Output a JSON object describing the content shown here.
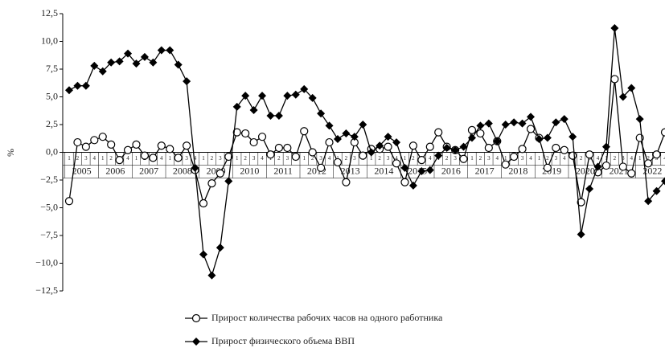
{
  "chart_data": {
    "type": "line",
    "y_label": "%",
    "categories": [
      "1",
      "2",
      "3",
      "4",
      "1",
      "2",
      "3",
      "4",
      "1",
      "2",
      "3",
      "4",
      "1",
      "2",
      "3",
      "4",
      "1",
      "2",
      "3",
      "4",
      "1",
      "2",
      "3",
      "4",
      "1",
      "2",
      "3",
      "4",
      "1",
      "2",
      "3",
      "4",
      "1",
      "2",
      "3",
      "4",
      "1",
      "2",
      "3",
      "4",
      "1",
      "2",
      "3",
      "4",
      "1",
      "2",
      "3",
      "4",
      "1",
      "2",
      "3",
      "4",
      "1",
      "2",
      "3",
      "4",
      "1",
      "2",
      "3",
      "4",
      "1",
      "2",
      "3",
      "4",
      "1",
      "2",
      "3",
      "4",
      "1",
      "2",
      "3",
      "4"
    ],
    "years": [
      "2005",
      "2006",
      "2007",
      "2008",
      "2009",
      "2010",
      "2011",
      "2012",
      "2013",
      "2014",
      "2015",
      "2016",
      "2017",
      "2018",
      "2019",
      "2020",
      "2021",
      "2022"
    ],
    "series": [
      {
        "name": "Прирост количества рабочих часов на одного работника",
        "color": "#000000",
        "marker": "circle",
        "values": [
          -4.4,
          0.9,
          0.5,
          1.1,
          1.4,
          0.7,
          -0.7,
          0.2,
          0.7,
          -0.3,
          -0.5,
          0.6,
          0.3,
          -0.5,
          0.6,
          -1.6,
          -4.6,
          -2.8,
          -1.9,
          -0.4,
          1.8,
          1.7,
          0.9,
          1.4,
          -0.2,
          0.4,
          0.4,
          -0.4,
          1.9,
          0.0,
          -1.4,
          0.9,
          -0.9,
          -2.7,
          0.9,
          -0.3,
          0.3,
          0.3,
          0.5,
          -1.0,
          -2.7,
          0.6,
          -0.7,
          0.5,
          1.8,
          0.5,
          0.2,
          -0.6,
          2.0,
          1.7,
          0.4,
          1.0,
          -1.1,
          -0.4,
          0.3,
          2.1,
          1.3,
          -1.4,
          0.4,
          0.2,
          -0.3,
          -4.5,
          -0.2,
          -1.8,
          -1.2,
          6.6,
          -1.3,
          -1.9,
          1.3,
          -1.0,
          -0.2,
          1.8
        ]
      },
      {
        "name": "Прирост физического объема ВВП",
        "color": "#000000",
        "marker": "diamond",
        "values": [
          5.6,
          6.0,
          6.0,
          7.8,
          7.3,
          8.1,
          8.2,
          8.9,
          8.0,
          8.6,
          8.1,
          9.2,
          9.2,
          7.9,
          6.4,
          -1.4,
          -9.2,
          -11.1,
          -8.6,
          -2.6,
          4.1,
          5.1,
          3.8,
          5.1,
          3.3,
          3.3,
          5.1,
          5.2,
          5.7,
          4.9,
          3.5,
          2.4,
          1.2,
          1.7,
          1.4,
          2.5,
          0.0,
          0.6,
          1.4,
          0.9,
          -1.4,
          -3.0,
          -1.7,
          -1.6,
          -0.3,
          0.4,
          0.2,
          0.5,
          1.3,
          2.4,
          2.6,
          1.0,
          2.5,
          2.7,
          2.6,
          3.2,
          1.2,
          1.3,
          2.7,
          3.0,
          1.4,
          -7.4,
          -3.3,
          -1.3,
          0.5,
          11.2,
          5.0,
          5.8,
          3.0,
          -4.4,
          -3.5,
          -2.6
        ]
      }
    ],
    "ylim": [
      -12.5,
      12.5
    ],
    "yticks": [
      {
        "value": -12.5,
        "label": "−12,5"
      },
      {
        "value": -10,
        "label": "−10,0"
      },
      {
        "value": -7.5,
        "label": "−7,5"
      },
      {
        "value": -5,
        "label": "−5,0"
      },
      {
        "value": -2.5,
        "label": "−2,5"
      },
      {
        "value": 0,
        "label": "0,0"
      },
      {
        "value": 2.5,
        "label": "2,5"
      },
      {
        "value": 5,
        "label": "5,0"
      },
      {
        "value": 7.5,
        "label": "7,5"
      },
      {
        "value": 10,
        "label": "10,0"
      },
      {
        "value": 12.5,
        "label": "12,5"
      }
    ]
  }
}
